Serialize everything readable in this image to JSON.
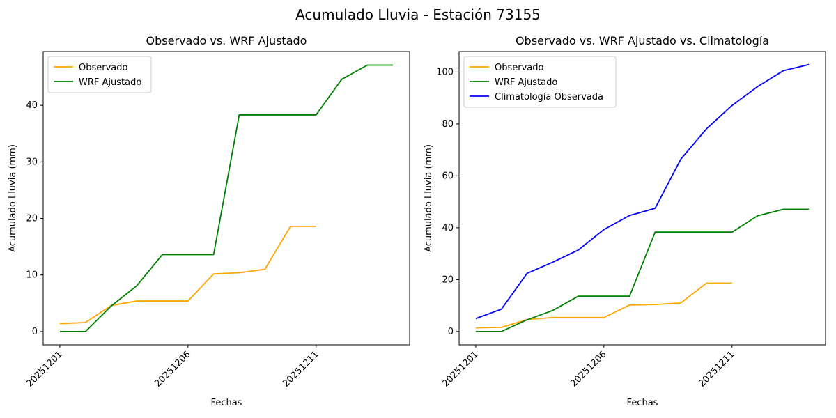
{
  "suptitle": "Acumulado Lluvia - Estación 73155",
  "chart_data": [
    {
      "type": "line",
      "title": "Observado vs. WRF Ajustado",
      "xlabel": "Fechas",
      "ylabel": "Acumulado Lluvia (mm)",
      "x": [
        "20251201",
        "20251202",
        "20251203",
        "20251204",
        "20251205",
        "20251206",
        "20251207",
        "20251208",
        "20251209",
        "20251210",
        "20251211",
        "20251212",
        "20251213",
        "20251214"
      ],
      "xticks": [
        "20251201",
        "20251206",
        "20251211"
      ],
      "ylim": [
        -2.35,
        49.5
      ],
      "yticks": [
        0,
        10,
        20,
        30,
        40
      ],
      "legend_position": "upper-left",
      "grid": false,
      "series": [
        {
          "name": "Observado",
          "color": "#ffa500",
          "values": [
            1.4,
            1.6,
            4.6,
            5.4,
            5.4,
            5.4,
            10.2,
            10.4,
            11.0,
            18.6,
            18.6,
            null,
            null,
            null
          ]
        },
        {
          "name": "WRF Ajustado",
          "color": "#008000",
          "values": [
            0.0,
            0.0,
            4.5,
            8.1,
            13.6,
            13.6,
            13.6,
            38.3,
            38.3,
            38.3,
            38.3,
            44.6,
            47.1,
            47.1
          ]
        }
      ]
    },
    {
      "type": "line",
      "title": "Observado vs. WRF Ajustado vs. Climatología",
      "xlabel": "Fechas",
      "ylabel": "Acumulado Lluvia (mm)",
      "x": [
        "20251201",
        "20251202",
        "20251203",
        "20251204",
        "20251205",
        "20251206",
        "20251207",
        "20251208",
        "20251209",
        "20251210",
        "20251211",
        "20251212",
        "20251213",
        "20251214"
      ],
      "xticks": [
        "20251201",
        "20251206",
        "20251211"
      ],
      "ylim": [
        -5.14,
        107.9
      ],
      "yticks": [
        0,
        20,
        40,
        60,
        80,
        100
      ],
      "legend_position": "upper-left",
      "grid": false,
      "series": [
        {
          "name": "Observado",
          "color": "#ffa500",
          "values": [
            1.4,
            1.6,
            4.6,
            5.4,
            5.4,
            5.4,
            10.2,
            10.4,
            11.0,
            18.6,
            18.6,
            null,
            null,
            null
          ]
        },
        {
          "name": "WRF Ajustado",
          "color": "#008000",
          "values": [
            0.0,
            0.0,
            4.5,
            8.1,
            13.6,
            13.6,
            13.6,
            38.3,
            38.3,
            38.3,
            38.3,
            44.6,
            47.1,
            47.1
          ]
        },
        {
          "name": "Climatología Observada",
          "color": "#0000ff",
          "values": [
            5.0,
            8.6,
            22.4,
            26.7,
            31.4,
            39.3,
            44.7,
            47.5,
            66.4,
            78.1,
            87.1,
            94.4,
            100.5,
            102.9
          ]
        }
      ]
    }
  ]
}
